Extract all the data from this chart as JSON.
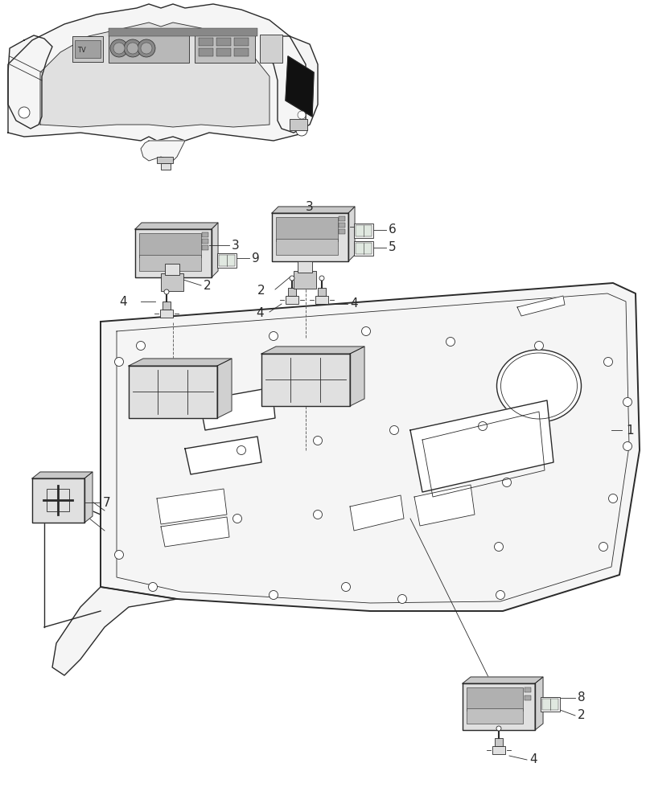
{
  "bg_color": "#ffffff",
  "line_color": "#2a2a2a",
  "fig_width": 8.04,
  "fig_height": 10.0,
  "dpi": 100,
  "label_fs": 11,
  "thin_lw": 0.6,
  "main_lw": 1.0,
  "thick_lw": 1.4,
  "gray_fill": "#f0f0f0",
  "dark_gray": "#c8c8c8",
  "mid_gray": "#e0e0e0",
  "light_gray": "#f5f5f5"
}
